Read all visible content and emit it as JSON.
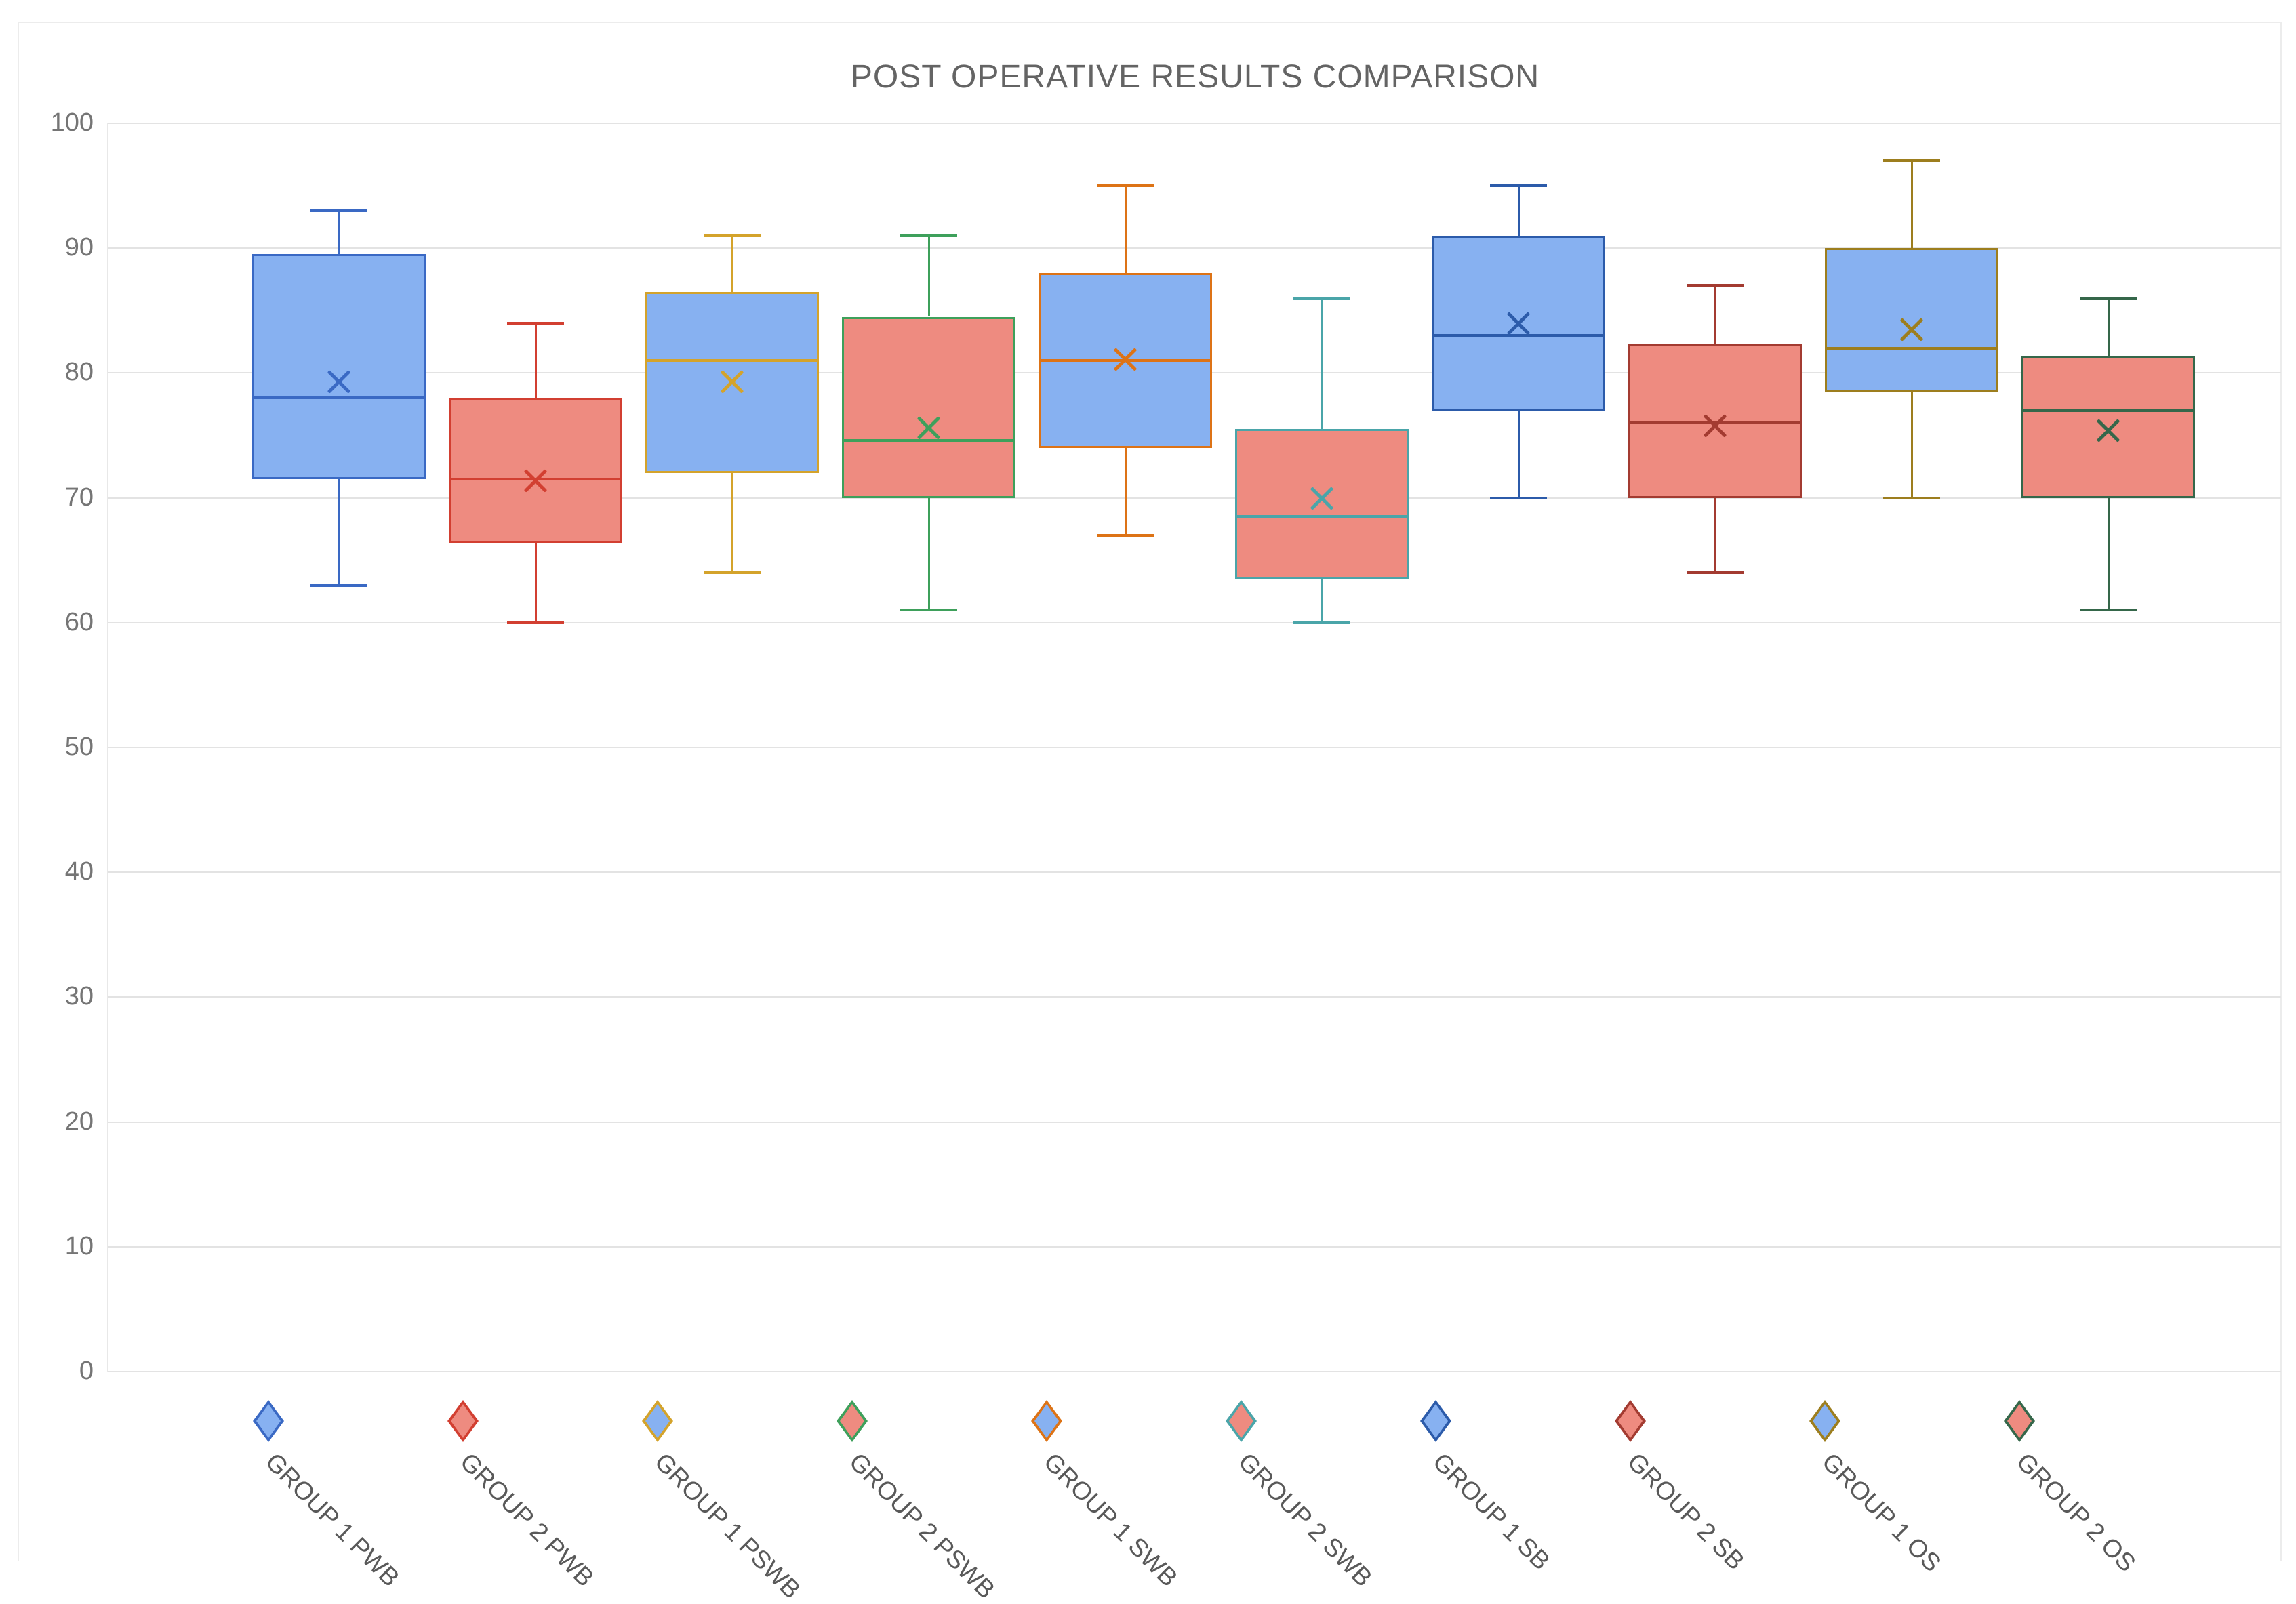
{
  "title": "POST OPERATIVE RESULTS COMPARISON",
  "chart_data": {
    "type": "boxplot",
    "title": "POST OPERATIVE RESULTS COMPARISON",
    "xlabel": "",
    "ylabel": "",
    "ylim": [
      0,
      100
    ],
    "ytick_step": 10,
    "ytick_labels": [
      "100",
      "90",
      "80",
      "70",
      "60",
      "50",
      "40",
      "30",
      "20",
      "10",
      "0"
    ],
    "grid": true,
    "legend_position": "bottom",
    "legend_label_rotation_deg": 45,
    "marker_shape": "diamond",
    "mean_marker": "x",
    "series": [
      {
        "label": "GROUP 1 PWB",
        "fill": "#87b1f1",
        "stroke": "#3a69c4",
        "min": 63,
        "q1": 71.5,
        "median": 78,
        "mean": 79.3,
        "q3": 89.5,
        "max": 93
      },
      {
        "label": "GROUP 2 PWB",
        "fill": "#ee8b80",
        "stroke": "#d23f31",
        "min": 60,
        "q1": 66.4,
        "median": 71.5,
        "mean": 71.4,
        "q3": 78,
        "max": 84
      },
      {
        "label": "GROUP 1 PSWB",
        "fill": "#87b1f1",
        "stroke": "#d4a32b",
        "min": 64,
        "q1": 72,
        "median": 81,
        "mean": 79.3,
        "q3": 86.5,
        "max": 91
      },
      {
        "label": "GROUP 2 PSWB",
        "fill": "#ee8b80",
        "stroke": "#3ea05b",
        "min": 61,
        "q1": 70,
        "median": 74.6,
        "mean": 75.6,
        "q3": 84.5,
        "max": 91
      },
      {
        "label": "GROUP 1 SWB",
        "fill": "#87b1f1",
        "stroke": "#dd7316",
        "min": 67,
        "q1": 74,
        "median": 81,
        "mean": 81.1,
        "q3": 88,
        "max": 95
      },
      {
        "label": "GROUP 2 SWB",
        "fill": "#ee8b80",
        "stroke": "#4aa5a9",
        "min": 60,
        "q1": 63.5,
        "median": 68.5,
        "mean": 70,
        "q3": 75.5,
        "max": 86
      },
      {
        "label": "GROUP 1 SB",
        "fill": "#87b1f1",
        "stroke": "#2c5baa",
        "min": 70,
        "q1": 77,
        "median": 83,
        "mean": 84,
        "q3": 91,
        "max": 95
      },
      {
        "label": "GROUP 2 SB",
        "fill": "#ee8b80",
        "stroke": "#a33b31",
        "min": 64,
        "q1": 70,
        "median": 76,
        "mean": 75.8,
        "q3": 82.3,
        "max": 87
      },
      {
        "label": "GROUP 1 OS",
        "fill": "#87b1f1",
        "stroke": "#9d7e1e",
        "min": 70,
        "q1": 78.5,
        "median": 82,
        "mean": 83.5,
        "q3": 90,
        "max": 97
      },
      {
        "label": "GROUP 2 OS",
        "fill": "#ee8b80",
        "stroke": "#35674a",
        "min": 61,
        "q1": 70,
        "median": 77,
        "mean": 75.4,
        "q3": 81.3,
        "max": 86
      }
    ]
  },
  "colors": {
    "background": "#ffffff",
    "gridline": "#e3e3e3",
    "title_text": "#646464",
    "axis_text": "#757575",
    "legend_text": "#595959",
    "blue_fill": "#87b1f1",
    "red_fill": "#ee8b80"
  }
}
